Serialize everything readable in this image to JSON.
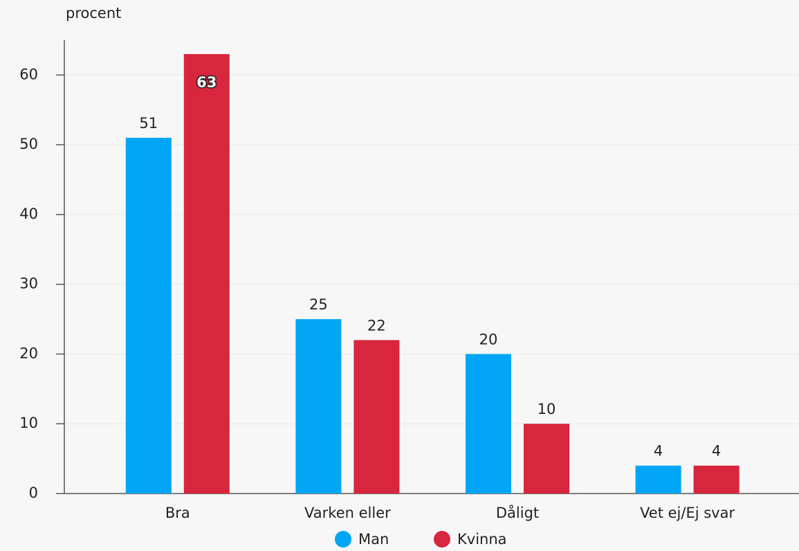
{
  "chart_data": {
    "type": "bar",
    "y_label": "procent",
    "categories": [
      "Bra",
      "Varken eller",
      "Dåligt",
      "Vet ej/Ej svar"
    ],
    "series": [
      {
        "name": "Man",
        "color": "#00a5f5",
        "values": [
          51,
          25,
          20,
          4
        ]
      },
      {
        "name": "Kvinna",
        "color": "#d7263d",
        "values": [
          63,
          22,
          10,
          4
        ]
      }
    ],
    "ylim": [
      0,
      65
    ],
    "yticks": [
      0,
      10,
      20,
      30,
      40,
      50,
      60
    ],
    "grid": true,
    "legend": "bottom"
  }
}
